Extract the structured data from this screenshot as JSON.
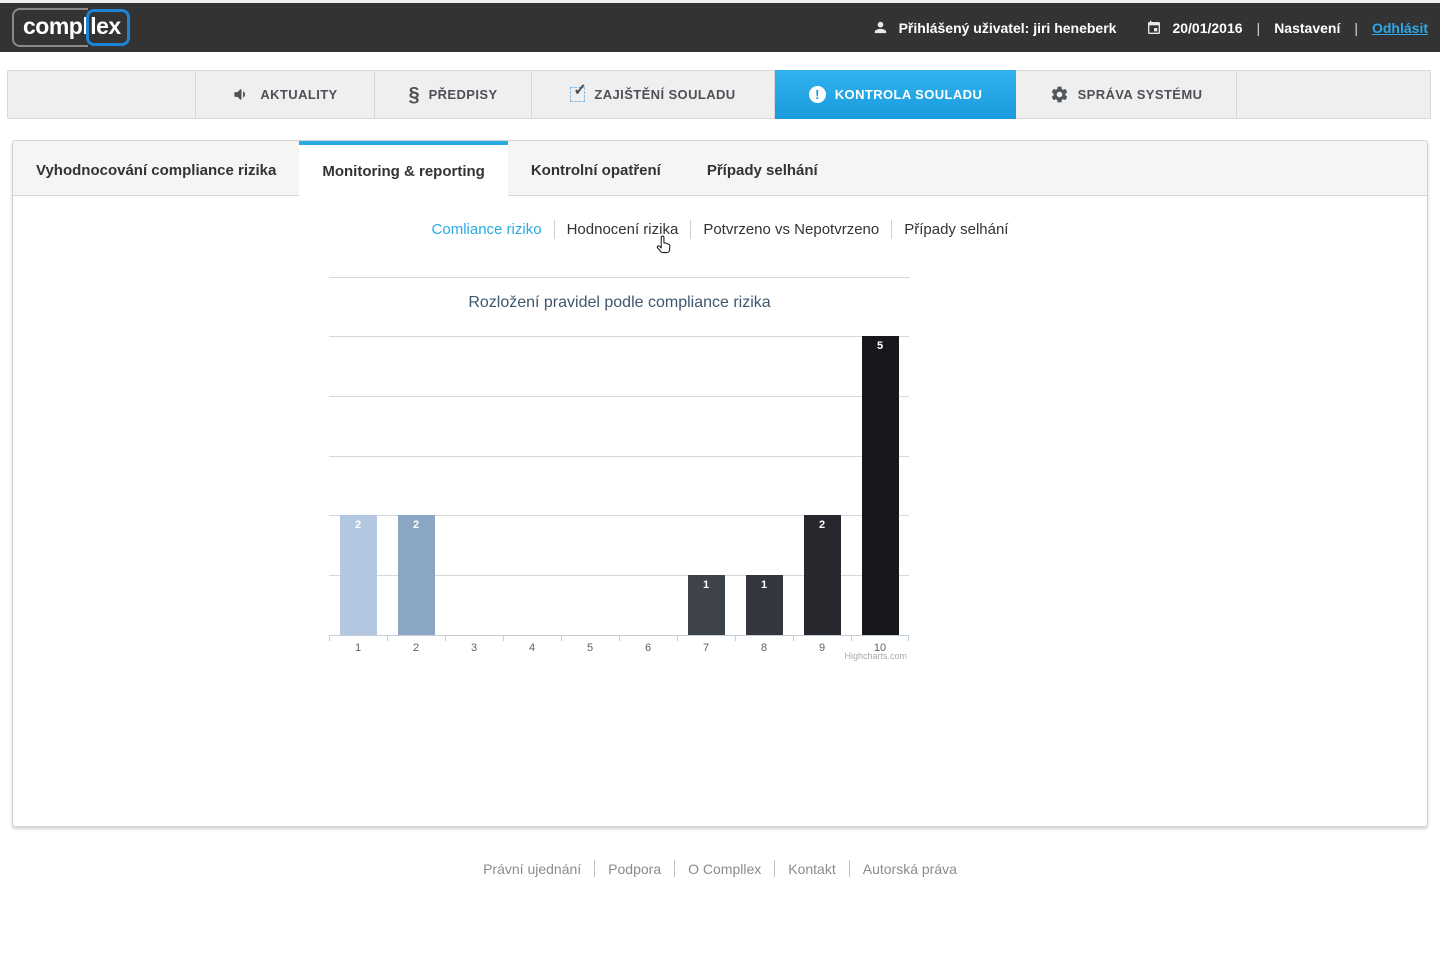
{
  "header": {
    "logo": {
      "part1": "compl",
      "part2": "lex"
    },
    "user_label": "Přihlášený uživatel: jiri heneberk",
    "date": "20/01/2016",
    "separator": "|",
    "settings_label": "Nastavení",
    "logout_label": "Odhlásit"
  },
  "main_nav": {
    "items": [
      {
        "label": "AKTUALITY",
        "icon": "megaphone-icon",
        "active": false
      },
      {
        "label": "PŘEDPISY",
        "icon": "section-sign-icon",
        "active": false
      },
      {
        "label": "ZAJIŠTĚNÍ SOULADU",
        "icon": "checkbox-icon",
        "active": false
      },
      {
        "label": "KONTROLA SOULADU",
        "icon": "exclamation-icon",
        "active": true
      },
      {
        "label": "SPRÁVA SYSTÉMU",
        "icon": "gear-icon",
        "active": false
      }
    ]
  },
  "sub_nav": {
    "tabs": [
      {
        "label": "Vyhodnocování compliance rizika",
        "active": false
      },
      {
        "label": "Monitoring & reporting",
        "active": true
      },
      {
        "label": "Kontrolní opatření",
        "active": false
      },
      {
        "label": "Případy selhání",
        "active": false
      }
    ]
  },
  "report_links": [
    {
      "label": "Comliance riziko",
      "active": true
    },
    {
      "label": "Hodnocení rizika",
      "active": false
    },
    {
      "label": "Potvrzeno vs Nepotvrzeno",
      "active": false
    },
    {
      "label": "Případy selhání",
      "active": false
    }
  ],
  "chart_data": {
    "type": "bar",
    "title": "Rozložení pravidel podle compliance rizika",
    "xlabel": "",
    "ylabel": "",
    "categories": [
      "1",
      "2",
      "3",
      "4",
      "5",
      "6",
      "7",
      "8",
      "9",
      "10"
    ],
    "values": [
      2,
      2,
      0,
      0,
      0,
      0,
      1,
      1,
      2,
      5
    ],
    "colors": [
      "#b3c7e0",
      "#8ba6c3",
      null,
      null,
      null,
      null,
      "#3e4249",
      "#33363c",
      "#26282e",
      "#16181c"
    ],
    "ylim": [
      0,
      5
    ],
    "grid": true,
    "legend_position": "none",
    "data_label_color": "#ffffff",
    "credit": "Highcharts.com"
  },
  "footer": {
    "links": [
      {
        "label": "Právní ujednání"
      },
      {
        "label": "Podpora"
      },
      {
        "label": "O Compllex"
      },
      {
        "label": "Kontakt"
      },
      {
        "label": "Autorská práva"
      }
    ]
  },
  "colors": {
    "accent_blue": "#29abe2",
    "header_bg": "#333333",
    "nav_bg": "#efefef",
    "active_tab_gradient_top": "#31b2ef",
    "active_tab_gradient_bottom": "#1a9bdd",
    "gridline": "#d8d8d8",
    "axis_line": "#c3ced9"
  }
}
